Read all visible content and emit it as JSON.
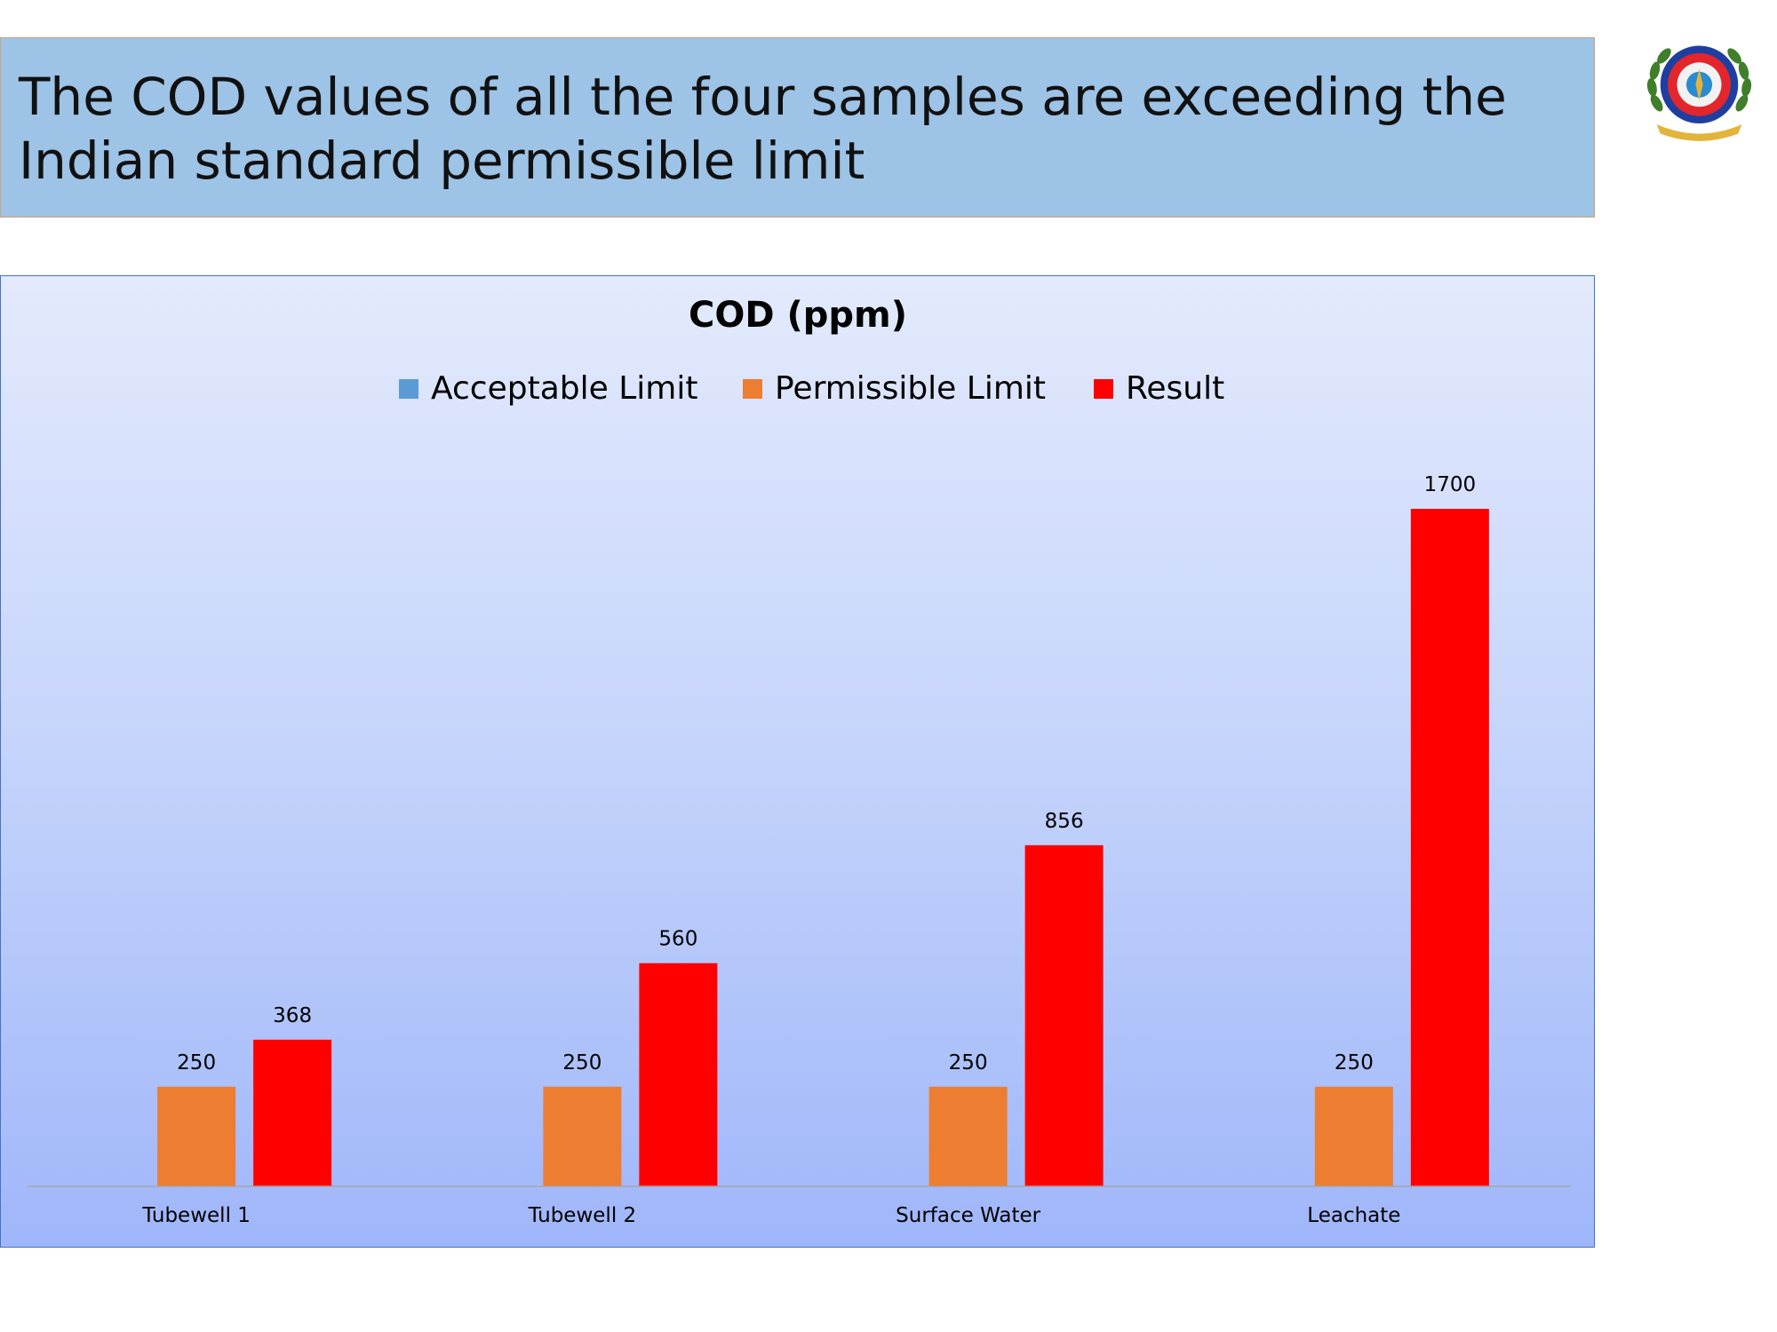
{
  "slide": {
    "headline": "The COD values of all the four samples are exceeding the Indian standard permissible limit"
  },
  "logo": {
    "icon": "university-seal-icon",
    "colors": {
      "ring": "#1f3fa0",
      "center": "#e3262b",
      "wreath": "#3f7f2a",
      "ribbon": "#e2b43a"
    }
  },
  "chart_data": {
    "type": "bar",
    "title": "COD (ppm)",
    "categories": [
      "Tubewell 1",
      "Tubewell 2",
      "Surface Water",
      "Leachate"
    ],
    "series": [
      {
        "name": "Acceptable Limit",
        "color": "#5b9bd5",
        "values": [
          null,
          null,
          null,
          null
        ]
      },
      {
        "name": "Permissible Limit",
        "color": "#ed7d31",
        "values": [
          250,
          250,
          250,
          250
        ]
      },
      {
        "name": "Result",
        "color": "#ff0000",
        "values": [
          368,
          560,
          856,
          1700
        ]
      }
    ],
    "legend_position": "top",
    "grid": false,
    "ylim": [
      0,
      1850
    ]
  }
}
